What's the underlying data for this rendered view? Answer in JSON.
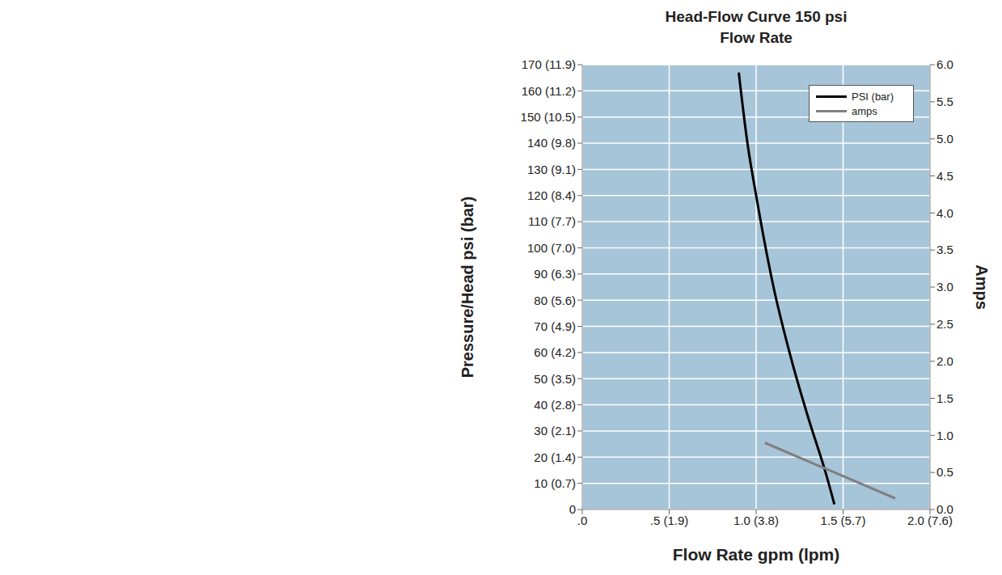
{
  "chart_data": {
    "type": "line",
    "title": "Head-Flow Curve 150 psi",
    "subtitle": "Flow Rate",
    "x_label": "Flow Rate gpm (lpm)",
    "y_label": "Pressure/Head psi (bar)",
    "y2_label": "Amps",
    "xlim": [
      0,
      2
    ],
    "xticks": [
      {
        "value": 0,
        "label": ".0"
      },
      {
        "value": 0.5,
        "label": ".5 (1.9)"
      },
      {
        "value": 1,
        "label": "1.0 (3.8)"
      },
      {
        "value": 1.5,
        "label": "1.5 (5.7)"
      },
      {
        "value": 2,
        "label": "2.0 (7.6)"
      }
    ],
    "ylim": [
      0,
      170
    ],
    "yticks": [
      0,
      {
        "value": 10,
        "label": "10 (0.7)"
      },
      {
        "value": 20,
        "label": "20 (1.4)"
      },
      {
        "value": 30,
        "label": "30 (2.1)"
      },
      {
        "value": 40,
        "label": "40 (2.8)"
      },
      {
        "value": 50,
        "label": "50 (3.5)"
      },
      {
        "value": 60,
        "label": "60 (4.2)"
      },
      {
        "value": 70,
        "label": "70 (4.9)"
      },
      {
        "value": 80,
        "label": "80 (5.6)"
      },
      {
        "value": 90,
        "label": "90 (6.3)"
      },
      {
        "value": 100,
        "label": "100 (7.0)"
      },
      {
        "value": 110,
        "label": "110 (7.7)"
      },
      {
        "value": 120,
        "label": "120 (8.4)"
      },
      {
        "value": 130,
        "label": "130 (9.1)"
      },
      {
        "value": 140,
        "label": "140 (9.8)"
      },
      {
        "value": 150,
        "label": "150 (10.5)"
      },
      {
        "value": 160,
        "label": "160 (11.2)"
      },
      {
        "value": 170,
        "label": "170 (11.9)"
      }
    ],
    "y2lim": [
      0,
      6
    ],
    "y2ticks": [
      {
        "value": 0,
        "label": "0.0"
      },
      0.5,
      {
        "value": 1,
        "label": "1.0"
      },
      1.5,
      {
        "value": 2,
        "label": "2.0"
      },
      2.5,
      {
        "value": 3,
        "label": "3.0"
      },
      3.5,
      {
        "value": 4,
        "label": "4.0"
      },
      4.5,
      {
        "value": 5,
        "label": "5.0"
      },
      5.5,
      {
        "value": 6,
        "label": "6.0"
      }
    ],
    "grid": true,
    "legend": "upper right",
    "series": [
      {
        "name": "PSI (bar)",
        "color": "#000000",
        "x": [
          0.9,
          0.95,
          1.0,
          1.1,
          1.2,
          1.3,
          1.4,
          1.45
        ],
        "values": [
          167,
          140,
          120,
          85,
          58,
          35,
          14,
          2
        ]
      },
      {
        "name": "amps",
        "color": "#808080",
        "axis": "y2",
        "x": [
          1.05,
          1.8
        ],
        "values": [
          0.9,
          0.15
        ]
      }
    ]
  }
}
